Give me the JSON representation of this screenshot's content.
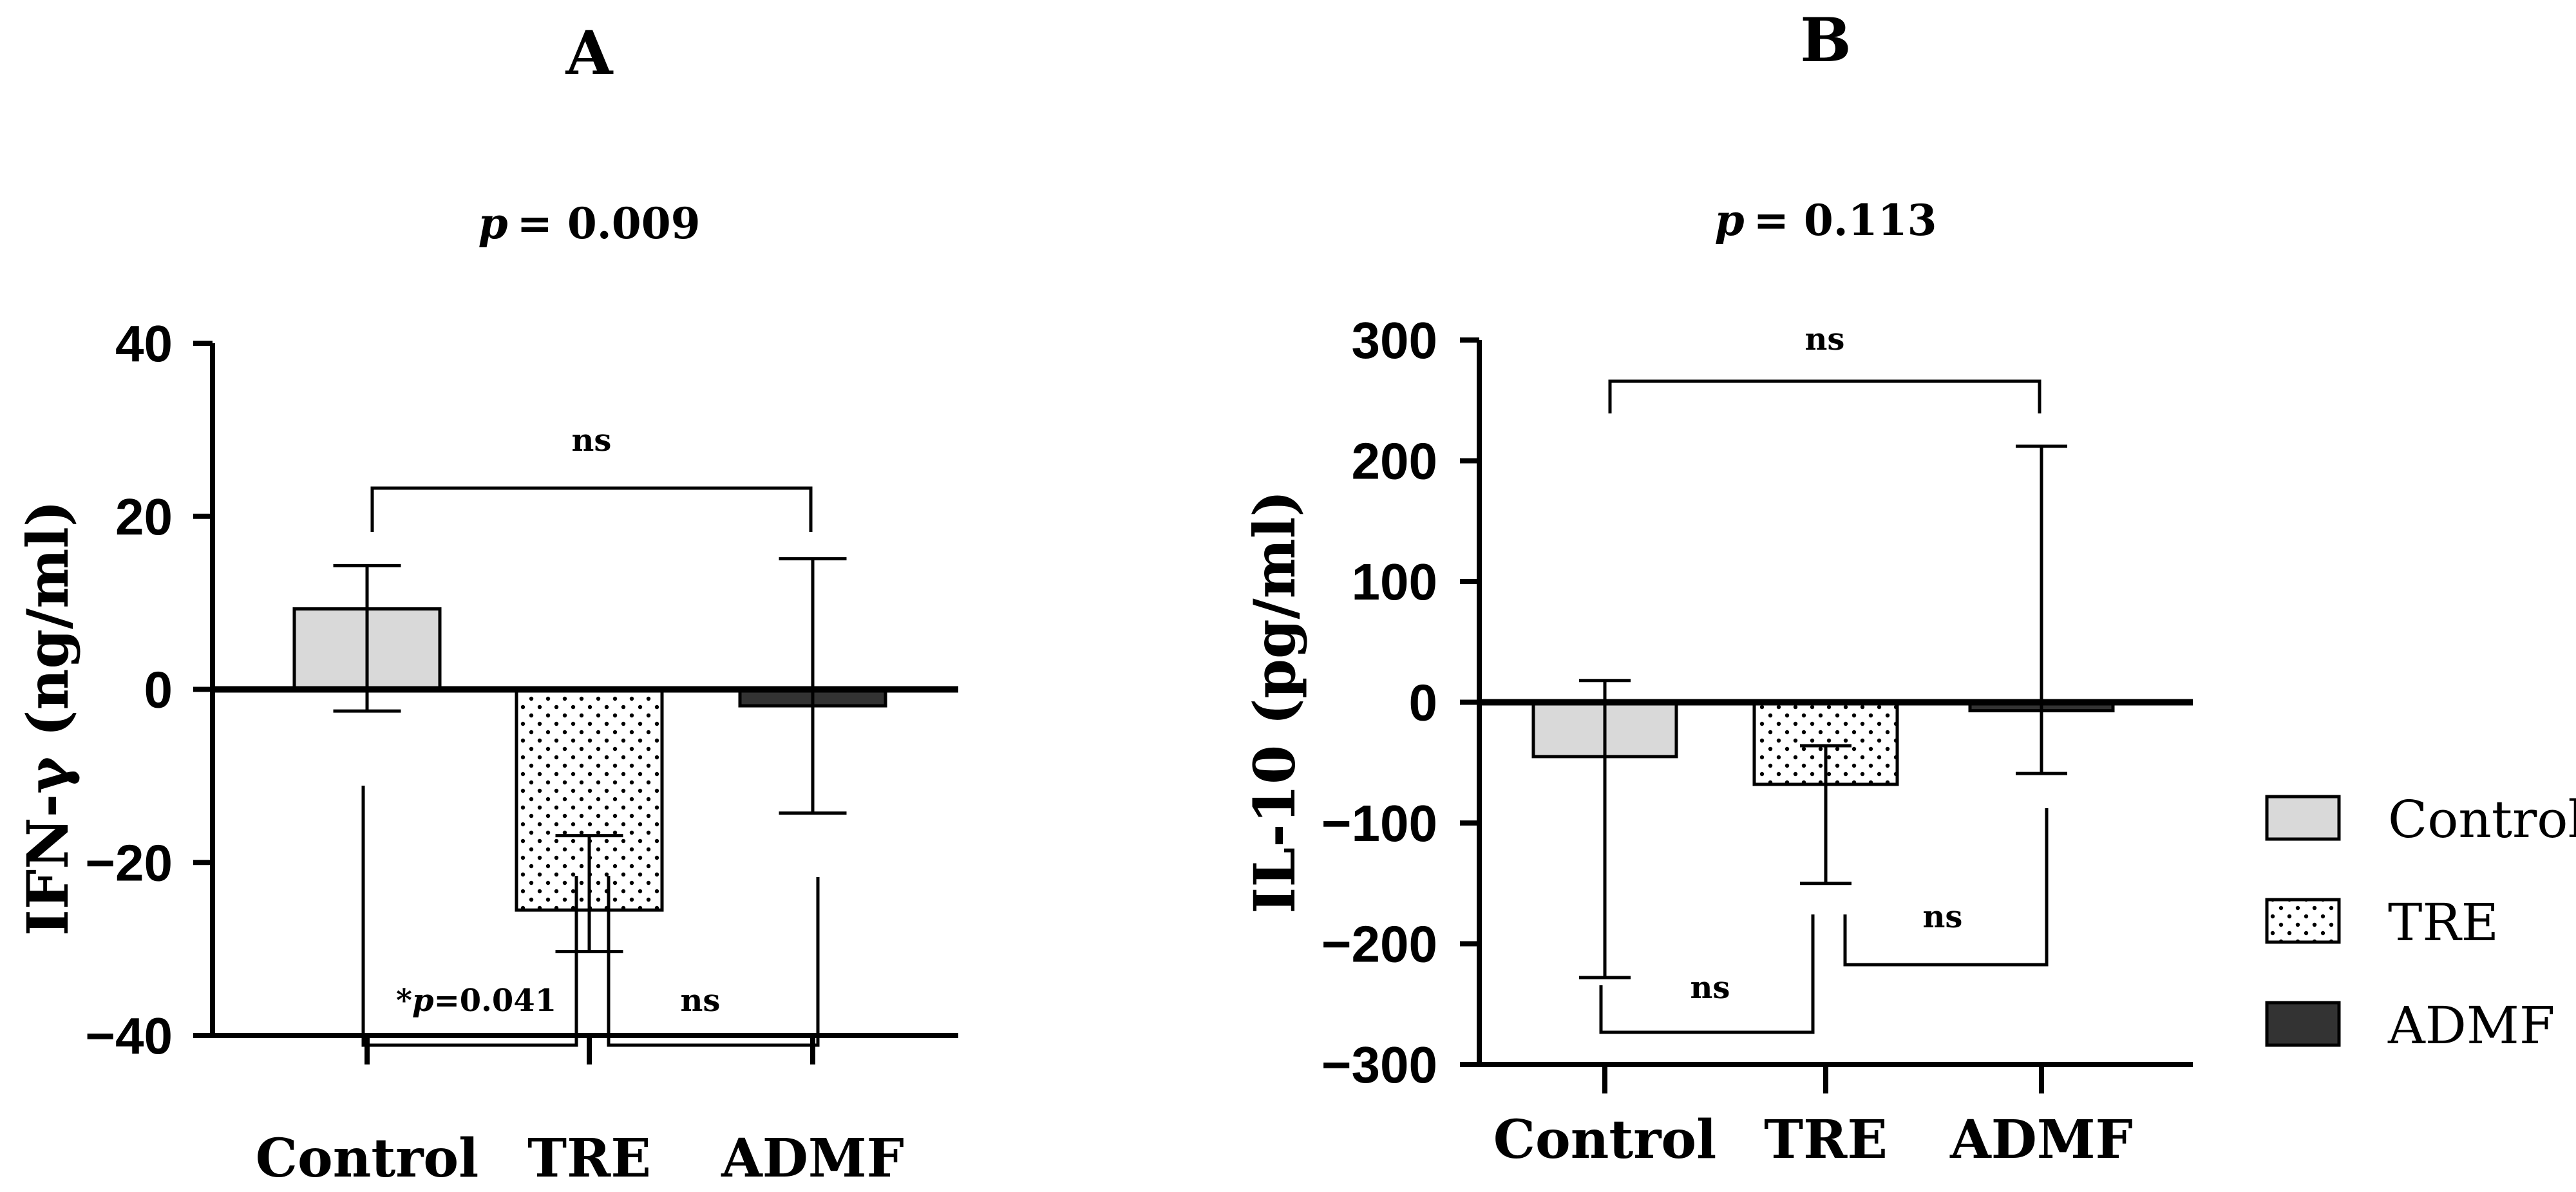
{
  "chart_data": [
    {
      "type": "bar",
      "panel": "A",
      "title": "A",
      "subtitle_prefix": "p",
      "subtitle_value": "= 0.009",
      "xlabel": "",
      "ylabel": "IFN-γ (ng/ml)",
      "ylim": [
        -40,
        40
      ],
      "yticks": [
        -40,
        -20,
        0,
        20,
        40
      ],
      "ytick_labels": [
        "−40",
        "−20",
        "0",
        "20",
        "40"
      ],
      "categories": [
        "Control",
        "TRE",
        "ADMF"
      ],
      "values": [
        9.3,
        -25.5,
        -1.9
      ],
      "error_upper": [
        14.3,
        -16.9,
        15.1
      ],
      "error_lower": [
        -2.5,
        -30.3,
        -14.3
      ],
      "comparisons": [
        {
          "from": "Control",
          "to": "ADMF",
          "label_prefix": "",
          "label": "ns",
          "position": "above"
        },
        {
          "from": "Control",
          "to": "TRE",
          "label_prefix": "*p",
          "label": "=0.041",
          "position": "below"
        },
        {
          "from": "TRE",
          "to": "ADMF",
          "label_prefix": "",
          "label": "ns",
          "position": "below"
        }
      ]
    },
    {
      "type": "bar",
      "panel": "B",
      "title": "B",
      "subtitle_prefix": "p",
      "subtitle_value": "=  0.113",
      "xlabel": "",
      "ylabel": "IL-10 (pg/ml)",
      "ylim": [
        -300,
        300
      ],
      "yticks": [
        -300,
        -200,
        -100,
        0,
        100,
        200,
        300
      ],
      "ytick_labels": [
        "−300",
        "−200",
        "−100",
        "0",
        "100",
        "200",
        "300"
      ],
      "categories": [
        "Control",
        "TRE",
        "ADMF"
      ],
      "values": [
        -45,
        -68,
        -7
      ],
      "error_upper": [
        18,
        -36,
        212
      ],
      "error_lower": [
        -228,
        -150,
        -59
      ],
      "comparisons": [
        {
          "from": "Control",
          "to": "ADMF",
          "label_prefix": "",
          "label": "ns",
          "position": "above"
        },
        {
          "from": "Control",
          "to": "TRE",
          "label_prefix": "",
          "label": "ns",
          "position": "below"
        },
        {
          "from": "TRE",
          "to": "ADMF",
          "label_prefix": "",
          "label": "ns",
          "position": "below"
        }
      ]
    }
  ],
  "legend": {
    "items": [
      {
        "label": "Control",
        "fill": "#d9d9d9",
        "pattern": "solid"
      },
      {
        "label": "TRE",
        "fill": "#ffffff",
        "pattern": "dots"
      },
      {
        "label": "ADMF",
        "fill": "#333333",
        "pattern": "solid"
      }
    ]
  },
  "colors": {
    "control": "#d9d9d9",
    "tre": "#ffffff",
    "admf": "#333333",
    "axis": "#000000"
  }
}
